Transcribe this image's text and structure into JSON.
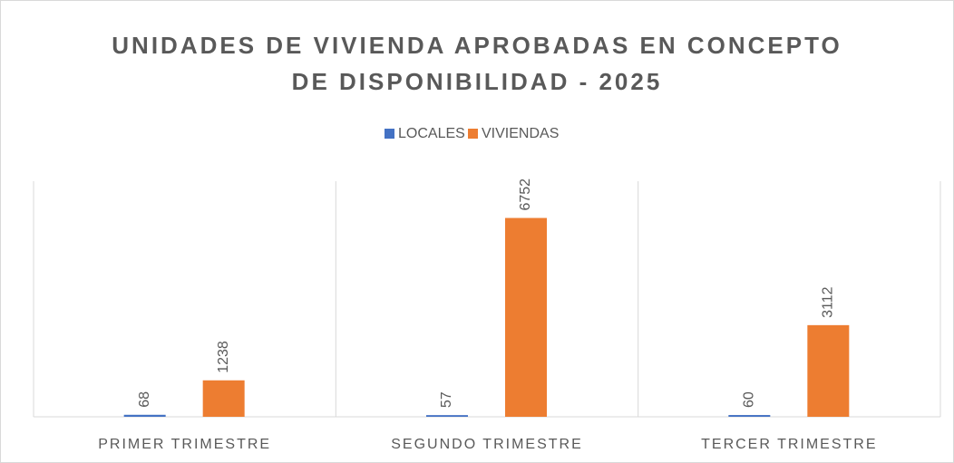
{
  "chart_data": {
    "type": "bar",
    "title": "UNIDADES DE VIVIENDA APROBADAS EN CONCEPTO DE DISPONIBILIDAD - 2025",
    "categories": [
      "PRIMER TRIMESTRE",
      "SEGUNDO TRIMESTRE",
      "TERCER TRIMESTRE"
    ],
    "series": [
      {
        "name": "LOCALES",
        "color": "#4472c4",
        "values": [
          68,
          57,
          60
        ]
      },
      {
        "name": "VIVIENDAS",
        "color": "#ed7d31",
        "values": [
          1238,
          6752,
          3112
        ]
      }
    ],
    "ylim": [
      0,
      8000
    ],
    "legend": "top"
  }
}
